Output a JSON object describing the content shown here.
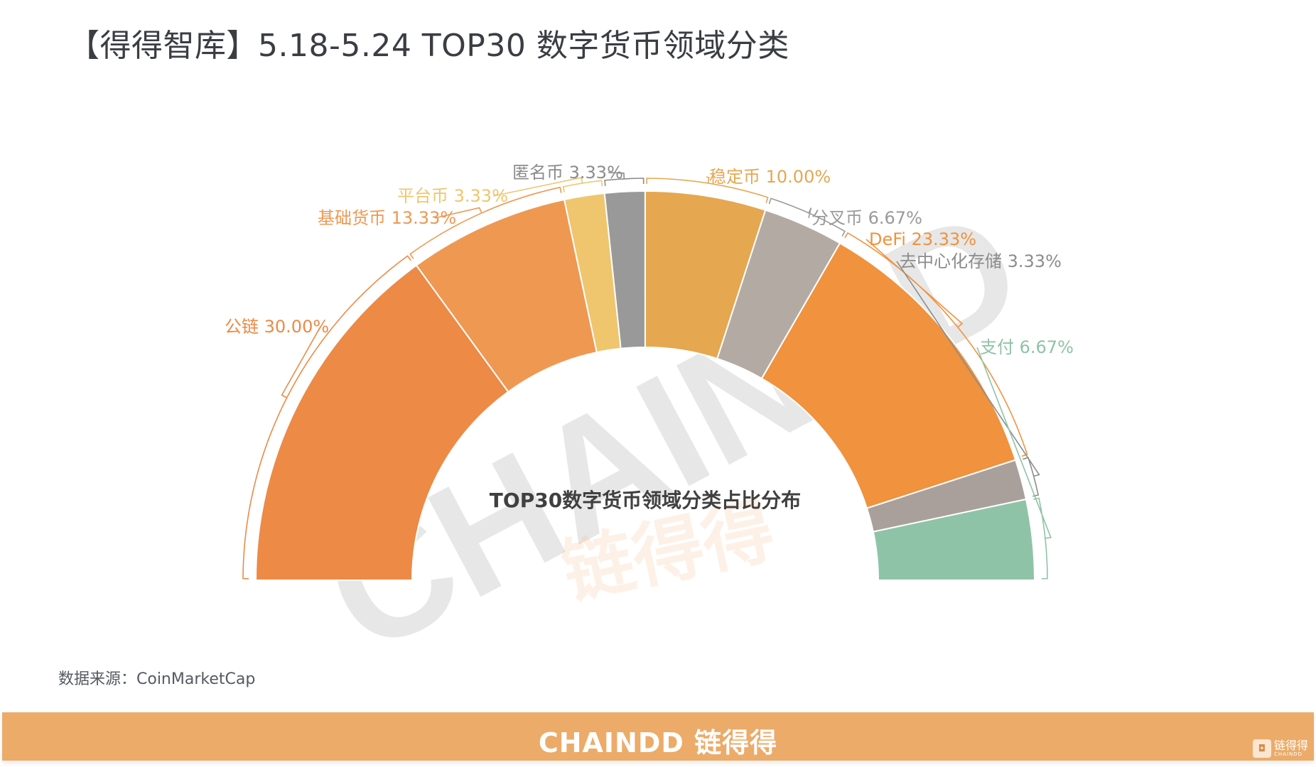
{
  "page": {
    "title": "【得得智库】5.18-5.24  TOP30 数字货币领域分类",
    "source": "数据来源：CoinMarketCap",
    "banner": "CHAINDD 链得得",
    "logo_text": "链得得",
    "logo_sub": "CHAINDD",
    "watermark_en": "CHAINDD",
    "watermark_cn": "链得得"
  },
  "chart_data": {
    "type": "pie",
    "subtype": "half-donut",
    "title": "TOP30数字货币领域分类占比分布",
    "unit": "%",
    "categories": [
      "公链",
      "基础货币",
      "平台币",
      "匿名币",
      "稳定币",
      "分叉币",
      "DeFi",
      "去中心化存储",
      "支付"
    ],
    "values": [
      30.0,
      13.33,
      3.33,
      3.33,
      10.0,
      6.67,
      23.33,
      3.33,
      6.67
    ],
    "labels": [
      "公链 30.00%",
      "基础货币 13.33%",
      "平台币 3.33%",
      "匿名币 3.33%",
      "稳定币 10.00%",
      "分叉币 6.67%",
      "DeFi 23.33%",
      "去中心化存储 3.33%",
      "支付 6.67%"
    ],
    "colors": [
      "#ec8a46",
      "#ef9852",
      "#efc66e",
      "#999999",
      "#e5a74f",
      "#b3aaa4",
      "#f0923e",
      "#a9a09c",
      "#8fc3a7"
    ],
    "label_colors": [
      "#ec8a46",
      "#ef9852",
      "#efc66e",
      "#8c8c8c",
      "#e5a74f",
      "#9a9a9a",
      "#f0923e",
      "#8c8c8c",
      "#8fc3a7"
    ]
  }
}
